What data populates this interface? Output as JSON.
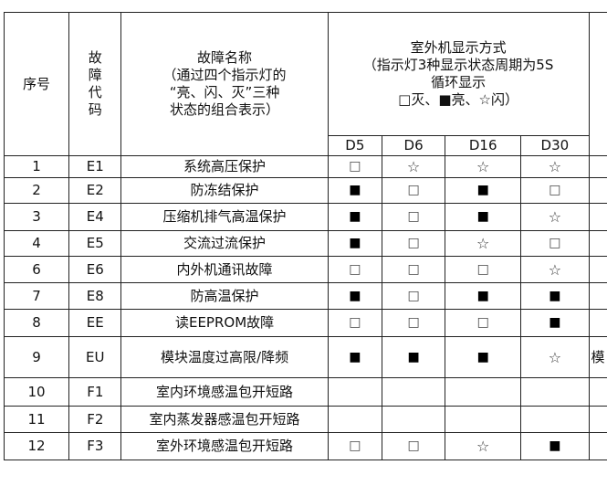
{
  "header": {
    "seq": "序号",
    "code": "故\n障\n代\n码",
    "name_title": "故障名称",
    "name_note": "（通过四个指示灯的\n“亮、闪、灭”三种\n状态的组合表示）",
    "display_title": "室外机显示方式",
    "display_note": "（指示灯3种显示状态周期为5S\n循环显示\n□灭、■亮、☆闪）",
    "leds": [
      "D5",
      "D6",
      "D16",
      "D30"
    ]
  },
  "legend": {
    "off": "□",
    "on": "■",
    "flash": "☆"
  },
  "rows": [
    {
      "seq": "1",
      "code": "E1",
      "name": "系统高压保护",
      "leds": [
        "□",
        "☆",
        "☆",
        "☆"
      ],
      "extra": ""
    },
    {
      "seq": "2",
      "code": "E2",
      "name": "防冻结保护",
      "leds": [
        "■",
        "□",
        "■",
        "□"
      ],
      "extra": ""
    },
    {
      "seq": "3",
      "code": "E4",
      "name": "压缩机排气高温保护",
      "leds": [
        "■",
        "□",
        "■",
        "☆"
      ],
      "extra": ""
    },
    {
      "seq": "4",
      "code": "E5",
      "name": "交流过流保护",
      "leds": [
        "■",
        "□",
        "☆",
        "□"
      ],
      "extra": ""
    },
    {
      "seq": "6",
      "code": "E6",
      "name": "内外机通讯故障",
      "leds": [
        "□",
        "□",
        "□",
        "☆"
      ],
      "extra": ""
    },
    {
      "seq": "7",
      "code": "E8",
      "name": "防高温保护",
      "leds": [
        "■",
        "□",
        "■",
        "■"
      ],
      "extra": ""
    },
    {
      "seq": "8",
      "code": "EE",
      "name": "读EEPROM故障",
      "leds": [
        "□",
        "□",
        "□",
        "■"
      ],
      "extra": ""
    },
    {
      "seq": "9",
      "code": "EU",
      "name": "模块温度过高限/降频",
      "leds": [
        "■",
        "■",
        "■",
        "☆"
      ],
      "extra": "模"
    },
    {
      "seq": "10",
      "code": "F1",
      "name": "室内环境感温包开短路",
      "leds": [
        "",
        "",
        "",
        ""
      ],
      "extra": ""
    },
    {
      "seq": "11",
      "code": "F2",
      "name": "室内蒸发器感温包开短路",
      "leds": [
        "",
        "",
        "",
        ""
      ],
      "extra": ""
    },
    {
      "seq": "12",
      "code": "F3",
      "name": "室外环境感温包开短路",
      "leds": [
        "□",
        "□",
        "☆",
        "■"
      ],
      "extra": ""
    }
  ]
}
